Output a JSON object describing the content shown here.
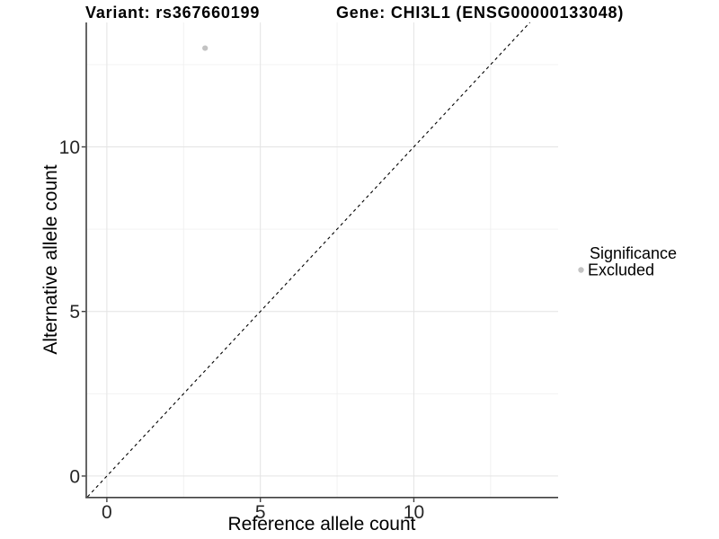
{
  "page": {
    "background": "#ffffff"
  },
  "chart_data": {
    "type": "scatter",
    "titles": {
      "left": "Variant: rs367660199",
      "right": "Gene: CHI3L1 (ENSG00000133048)"
    },
    "xlabel": "Reference allele count",
    "ylabel": "Alternative allele count",
    "xlim": [
      -0.67,
      14.7
    ],
    "ylim": [
      -0.63,
      13.78
    ],
    "xticks": [
      0,
      5,
      10
    ],
    "yticks": [
      0,
      5,
      10
    ],
    "xminor": [
      2.5,
      7.5,
      12.5
    ],
    "yminor": [
      2.5,
      7.5,
      12.5
    ],
    "grid": "major+minor",
    "points": [
      {
        "x": 3.2,
        "y": 13,
        "series": "Excluded"
      }
    ],
    "reference_line": {
      "kind": "identity",
      "slope": 1,
      "intercept": 0,
      "style": "dashed"
    },
    "legend": {
      "title": "Significance",
      "position": "right",
      "entries": [
        {
          "label": "Excluded",
          "color": "#c3c3c3"
        }
      ]
    },
    "colors": {
      "point": "#c3c3c3",
      "grid_major": "#e4e4e4",
      "grid_minor": "#f0f0f0",
      "axis": "#404040",
      "reference_line": "#000000",
      "title": "#000000",
      "tick_label": "#262626"
    }
  }
}
